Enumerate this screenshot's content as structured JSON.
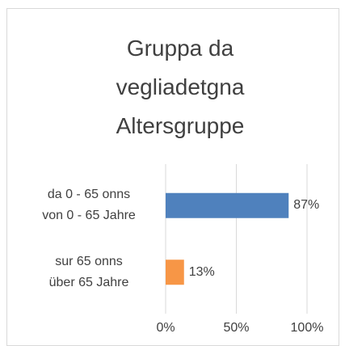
{
  "chart_data": {
    "type": "bar",
    "orientation": "horizontal",
    "title": "Gruppa da\nvegliadetgna\nAltersgruppe",
    "categories": [
      "da 0 - 65 onns\nvon 0 - 65 Jahre",
      "sur 65 onns\nüber 65 Jahre"
    ],
    "values": [
      87,
      13
    ],
    "value_labels": [
      "87%",
      "13%"
    ],
    "colors": [
      "#4f81bd",
      "#f79646"
    ],
    "xlim": [
      0,
      100
    ],
    "xticks": [
      {
        "value": 0,
        "label": "0%"
      },
      {
        "value": 50,
        "label": "50%"
      },
      {
        "value": 100,
        "label": "100%"
      }
    ],
    "grid": true
  }
}
